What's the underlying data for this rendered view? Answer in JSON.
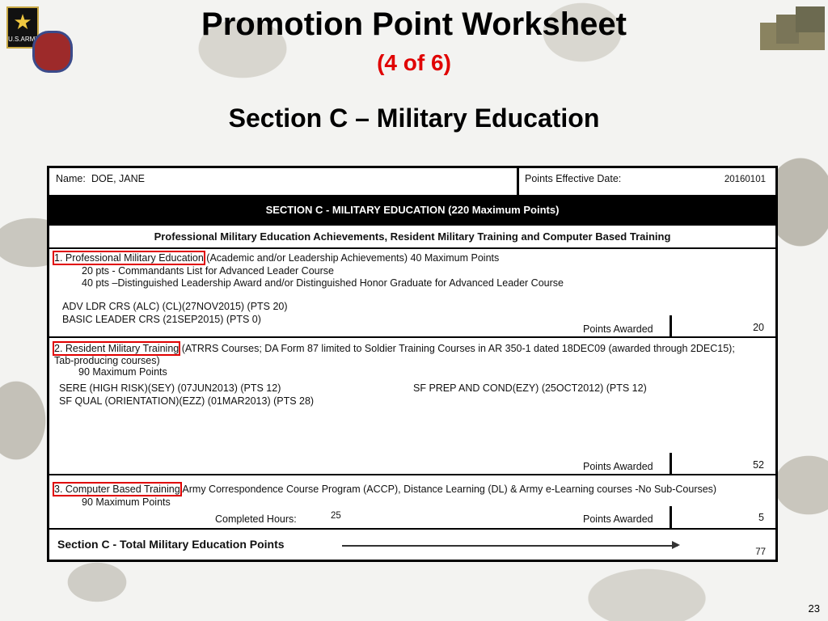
{
  "slide": {
    "title": "Promotion Point Worksheet",
    "subtitle": "(4 of 6)",
    "heading": "Section C  – Military Education",
    "page_number": "23",
    "logo_text": "U.S.ARMY"
  },
  "form": {
    "name_label": "Name:",
    "name_value": "DOE, JANE",
    "date_label": "Points Effective Date:",
    "date_value": "20160101",
    "section_header": "SECTION C - MILITARY EDUCATION (220 Maximum Points)",
    "sub_header": "Professional Military Education Achievements, Resident Military Training and Computer Based Training",
    "points_awarded_label": "Points Awarded",
    "pme": {
      "title": "1.   Professional Military Education",
      "desc": " (Academic and/or Leadership Achievements) 40 Maximum Points",
      "lines": [
        "20 pts - Commandants List for Advanced Leader Course",
        "40 pts –Distinguished Leadership Award and/or Distinguished Honor Graduate for Advanced Leader Course"
      ],
      "entries": [
        "ADV LDR CRS (ALC) (CL)(27NOV2015) (PTS 20)",
        "BASIC LEADER CRS (21SEP2015) (PTS 0)"
      ],
      "points": "20"
    },
    "rmt": {
      "title": "2.   Resident Military Training",
      "desc": " (ATRRS Courses; DA Form 87 limited to Soldier Training Courses in AR 350-1 dated 18DEC09 (awarded through 2DEC15);",
      "desc2": "Tab-producing courses)",
      "max": "90 Maximum Points",
      "entries": [
        "SERE (HIGH RISK)(SEY) (07JUN2013) (PTS 12)",
        "SF QUAL (ORIENTATION)(EZZ) (01MAR2013) (PTS 28)",
        "SF PREP AND COND(EZY) (25OCT2012) (PTS 12)"
      ],
      "points": "52"
    },
    "cbt": {
      "title": "3.   Computer Based Training",
      "desc": " Army Correspondence Course Program (ACCP), Distance Learning (DL) & Army e-Learning courses -No Sub-Courses)",
      "max": "90 Maximum Points",
      "hours_label": "Completed Hours:",
      "hours_value": "25",
      "points": "5"
    },
    "total": {
      "label": "Section C - Total Military Education Points",
      "value": "77"
    }
  }
}
